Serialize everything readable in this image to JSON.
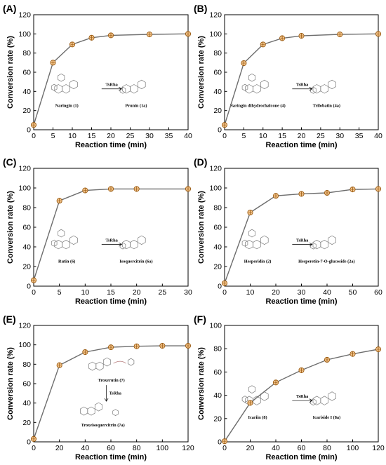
{
  "figure": {
    "ylabel": "Conversion rate (%)",
    "xlabel": "Reaction time (min)",
    "enzyme": "TsRha"
  },
  "colors": {
    "line": "#6d6d6d",
    "marker_fill": "#f2c48c",
    "marker_edge": "#9a5a10",
    "axis": "#000000",
    "structure": "#7a7a7a"
  },
  "chart_data": [
    {
      "type": "line",
      "panel": "(A)",
      "x": [
        0,
        5,
        10,
        15,
        20,
        30,
        40
      ],
      "values": [
        5,
        70,
        89,
        96,
        98.5,
        99.5,
        100
      ],
      "xlim": [
        0,
        40
      ],
      "ylim": [
        0,
        120
      ],
      "xticks": [
        "0",
        "5",
        "10",
        "15",
        "20",
        "25",
        "30",
        "35",
        "40"
      ],
      "yticks": [
        "0",
        "20",
        "40",
        "60",
        "80",
        "100",
        "120"
      ],
      "xlabel": "Reaction time (min)",
      "ylabel": "Conversion rate (%)",
      "annotation": {
        "substrate": "Naringin (1)",
        "product": "Prunin (1a)",
        "enzyme": "TsRha"
      }
    },
    {
      "type": "line",
      "panel": "(B)",
      "x": [
        0,
        5,
        10,
        15,
        20,
        30,
        40
      ],
      "values": [
        5,
        69.5,
        89,
        95.5,
        98,
        99.5,
        100
      ],
      "xlim": [
        0,
        40
      ],
      "ylim": [
        0,
        120
      ],
      "xticks": [
        "0",
        "5",
        "10",
        "15",
        "20",
        "25",
        "30",
        "35",
        "40"
      ],
      "yticks": [
        "0",
        "20",
        "40",
        "60",
        "80",
        "100",
        "120"
      ],
      "xlabel": "Reaction time (min)",
      "ylabel": "Conversion rate (%)",
      "annotation": {
        "substrate": "Naringin dihydrochalcone (4)",
        "product": "Trilobatin (4a)",
        "enzyme": "TsRha"
      }
    },
    {
      "type": "line",
      "panel": "(C)",
      "x": [
        0,
        5,
        10,
        15,
        20,
        30
      ],
      "values": [
        6,
        87,
        97.5,
        99,
        99,
        99
      ],
      "xlim": [
        0,
        30
      ],
      "ylim": [
        0,
        120
      ],
      "xticks": [
        "0",
        "5",
        "10",
        "15",
        "20",
        "25",
        "30"
      ],
      "yticks": [
        "0",
        "20",
        "40",
        "60",
        "80",
        "100",
        "120"
      ],
      "xlabel": "Reaction time (min)",
      "ylabel": "Conversion rate (%)",
      "annotation": {
        "substrate": "Rutin (6)",
        "product": "Isoquercitrin (6a)",
        "enzyme": "TsRha"
      }
    },
    {
      "type": "line",
      "panel": "(D)",
      "x": [
        0,
        10,
        20,
        30,
        40,
        50,
        60
      ],
      "values": [
        3,
        75,
        92,
        94,
        95,
        98.5,
        99
      ],
      "xlim": [
        0,
        60
      ],
      "ylim": [
        0,
        120
      ],
      "xticks": [
        "0",
        "10",
        "20",
        "30",
        "40",
        "50",
        "60"
      ],
      "yticks": [
        "0",
        "20",
        "40",
        "60",
        "80",
        "100",
        "120"
      ],
      "xlabel": "Reaction time (min)",
      "ylabel": "Conversion rate (%)",
      "annotation": {
        "substrate": "Hesperidin (2)",
        "product": "Hesperetin-7-O-glucoside (2a)",
        "enzyme": "TsRha"
      }
    },
    {
      "type": "line",
      "panel": "(E)",
      "x": [
        0,
        20,
        40,
        60,
        80,
        100,
        120
      ],
      "values": [
        3,
        79,
        92.5,
        97.5,
        98.5,
        99,
        99
      ],
      "xlim": [
        0,
        120
      ],
      "ylim": [
        0,
        120
      ],
      "xticks": [
        "0",
        "20",
        "40",
        "60",
        "80",
        "100",
        "120"
      ],
      "yticks": [
        "0",
        "20",
        "40",
        "60",
        "80",
        "100",
        "120"
      ],
      "xlabel": "Reaction time (min)",
      "ylabel": "Conversion rate (%)",
      "annotation": {
        "substrate": "Troxerutin (7)",
        "product": "Troxeisoquercitrin (7a)",
        "enzyme": "TsRha"
      }
    },
    {
      "type": "line",
      "panel": "(F)",
      "x": [
        0,
        20,
        40,
        60,
        80,
        100,
        120
      ],
      "values": [
        0.5,
        33.5,
        51,
        61.5,
        70.5,
        75.5,
        79.5
      ],
      "xlim": [
        0,
        120
      ],
      "ylim": [
        0,
        100
      ],
      "xticks": [
        "0",
        "20",
        "40",
        "60",
        "80",
        "100",
        "120"
      ],
      "yticks": [
        "0",
        "20",
        "40",
        "60",
        "80",
        "100"
      ],
      "xlabel": "Reaction time (min)",
      "ylabel": "Conversion rate (%)",
      "annotation": {
        "substrate": "Icariin (8)",
        "product": "Icariside I (8a)",
        "enzyme": "TsRha"
      }
    }
  ]
}
